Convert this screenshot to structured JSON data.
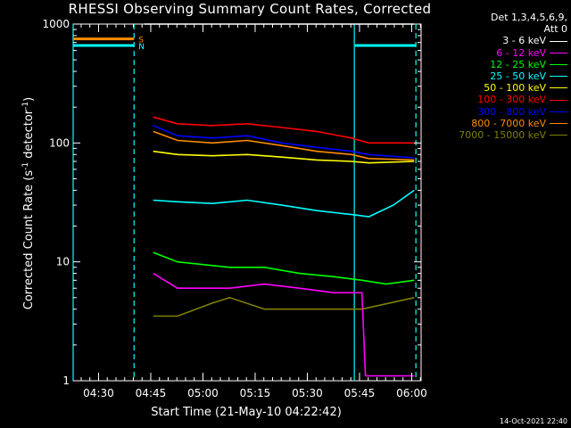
{
  "chart_data": {
    "type": "line",
    "title": "RHESSI Observing Summary Count Rates, Corrected",
    "xlabel": "Start Time (21-May-10 04:22:42)",
    "ylabel": "Corrected Count Rate (s",
    "ylabel_exp1": "-1",
    "ylabel_mid": " detector",
    "ylabel_exp2": "-1",
    "ylabel_end": ")",
    "yscale": "log",
    "ylim": [
      1,
      1000
    ],
    "y_ticks": [
      "1",
      "10",
      "100",
      "1000"
    ],
    "x_start_label": "04:22:42",
    "xlim_minutes": [
      0,
      100
    ],
    "x_ticks": [
      {
        "label": "04:30",
        "min": 7.3
      },
      {
        "label": "04:45",
        "min": 22.3
      },
      {
        "label": "05:00",
        "min": 37.3
      },
      {
        "label": "05:15",
        "min": 52.3
      },
      {
        "label": "05:30",
        "min": 67.3
      },
      {
        "label": "05:45",
        "min": 82.3
      },
      {
        "label": "06:00",
        "min": 97.3
      }
    ],
    "legend_header": [
      "Det 1,3,4,5,6,9,",
      "Att 0"
    ],
    "series": [
      {
        "name": "3 - 6 keV",
        "color": "#ffffff",
        "x": [
          20.5,
          30,
          45,
          60,
          75,
          85,
          98
        ],
        "y": [
          1000,
          1000,
          1000,
          1000,
          1000,
          1000,
          1000
        ]
      },
      {
        "name": "6 - 12 keV",
        "color": "#ff00ff",
        "x": [
          23,
          30,
          45,
          55,
          65,
          75,
          83,
          84,
          98
        ],
        "y": [
          8,
          6,
          6,
          6.5,
          6,
          5.5,
          5.5,
          1.1,
          1.1
        ]
      },
      {
        "name": "12 - 25 keV",
        "color": "#00ff00",
        "x": [
          23,
          30,
          45,
          55,
          65,
          75,
          83,
          90,
          98
        ],
        "y": [
          12,
          10,
          9,
          9,
          8,
          7.5,
          7,
          6.5,
          7
        ]
      },
      {
        "name": "25 - 50 keV",
        "color": "#00ffff",
        "x": [
          23,
          30,
          40,
          50,
          60,
          70,
          80,
          85,
          92,
          98
        ],
        "y": [
          33,
          32,
          31,
          33,
          30,
          27,
          25,
          24,
          30,
          40
        ]
      },
      {
        "name": "50 - 100 keV",
        "color": "#ffff00",
        "x": [
          23,
          30,
          40,
          50,
          60,
          70,
          80,
          85,
          98
        ],
        "y": [
          85,
          80,
          78,
          80,
          76,
          72,
          70,
          68,
          70
        ]
      },
      {
        "name": "100 - 300 keV",
        "color": "#ff0000",
        "x": [
          23,
          30,
          40,
          50,
          60,
          70,
          80,
          85,
          98
        ],
        "y": [
          165,
          145,
          140,
          145,
          135,
          125,
          110,
          100,
          100
        ]
      },
      {
        "name": "300 - 800 keV",
        "color": "#0000ff",
        "x": [
          23,
          30,
          40,
          50,
          60,
          70,
          80,
          85,
          98
        ],
        "y": [
          140,
          115,
          110,
          115,
          100,
          92,
          85,
          80,
          75
        ]
      },
      {
        "name": "800 - 7000 keV",
        "color": "#ff8c00",
        "x": [
          23,
          30,
          40,
          50,
          60,
          70,
          80,
          85,
          98
        ],
        "y": [
          125,
          105,
          100,
          105,
          95,
          85,
          80,
          74,
          72
        ]
      },
      {
        "name": "7000 - 15000 keV",
        "color": "#808000",
        "x": [
          23,
          30,
          40,
          45,
          55,
          65,
          75,
          83,
          98
        ],
        "y": [
          3.5,
          3.5,
          4.5,
          5,
          4,
          4,
          4,
          4,
          5
        ]
      }
    ],
    "flag_bars": [
      {
        "label": "S",
        "color": "#ff8c00",
        "x": [
          0,
          17.5
        ],
        "y": 750
      },
      {
        "label": "N",
        "color": "#00ffff",
        "x": [
          0,
          17.5
        ],
        "y": 660
      },
      {
        "label": "",
        "color": "#00ffff",
        "x": [
          81,
          98.5
        ],
        "y": 660
      }
    ],
    "vlines": [
      {
        "x": 0,
        "style": "solid",
        "color": "#00ffff"
      },
      {
        "x": 17.5,
        "style": "dashed",
        "color": "#00ffff"
      },
      {
        "x": 80.8,
        "style": "solid",
        "color": "#00ffff"
      },
      {
        "x": 98.5,
        "style": "dashed",
        "color": "#00ffff"
      }
    ],
    "footer": "14-Oct-2021 22:40"
  }
}
